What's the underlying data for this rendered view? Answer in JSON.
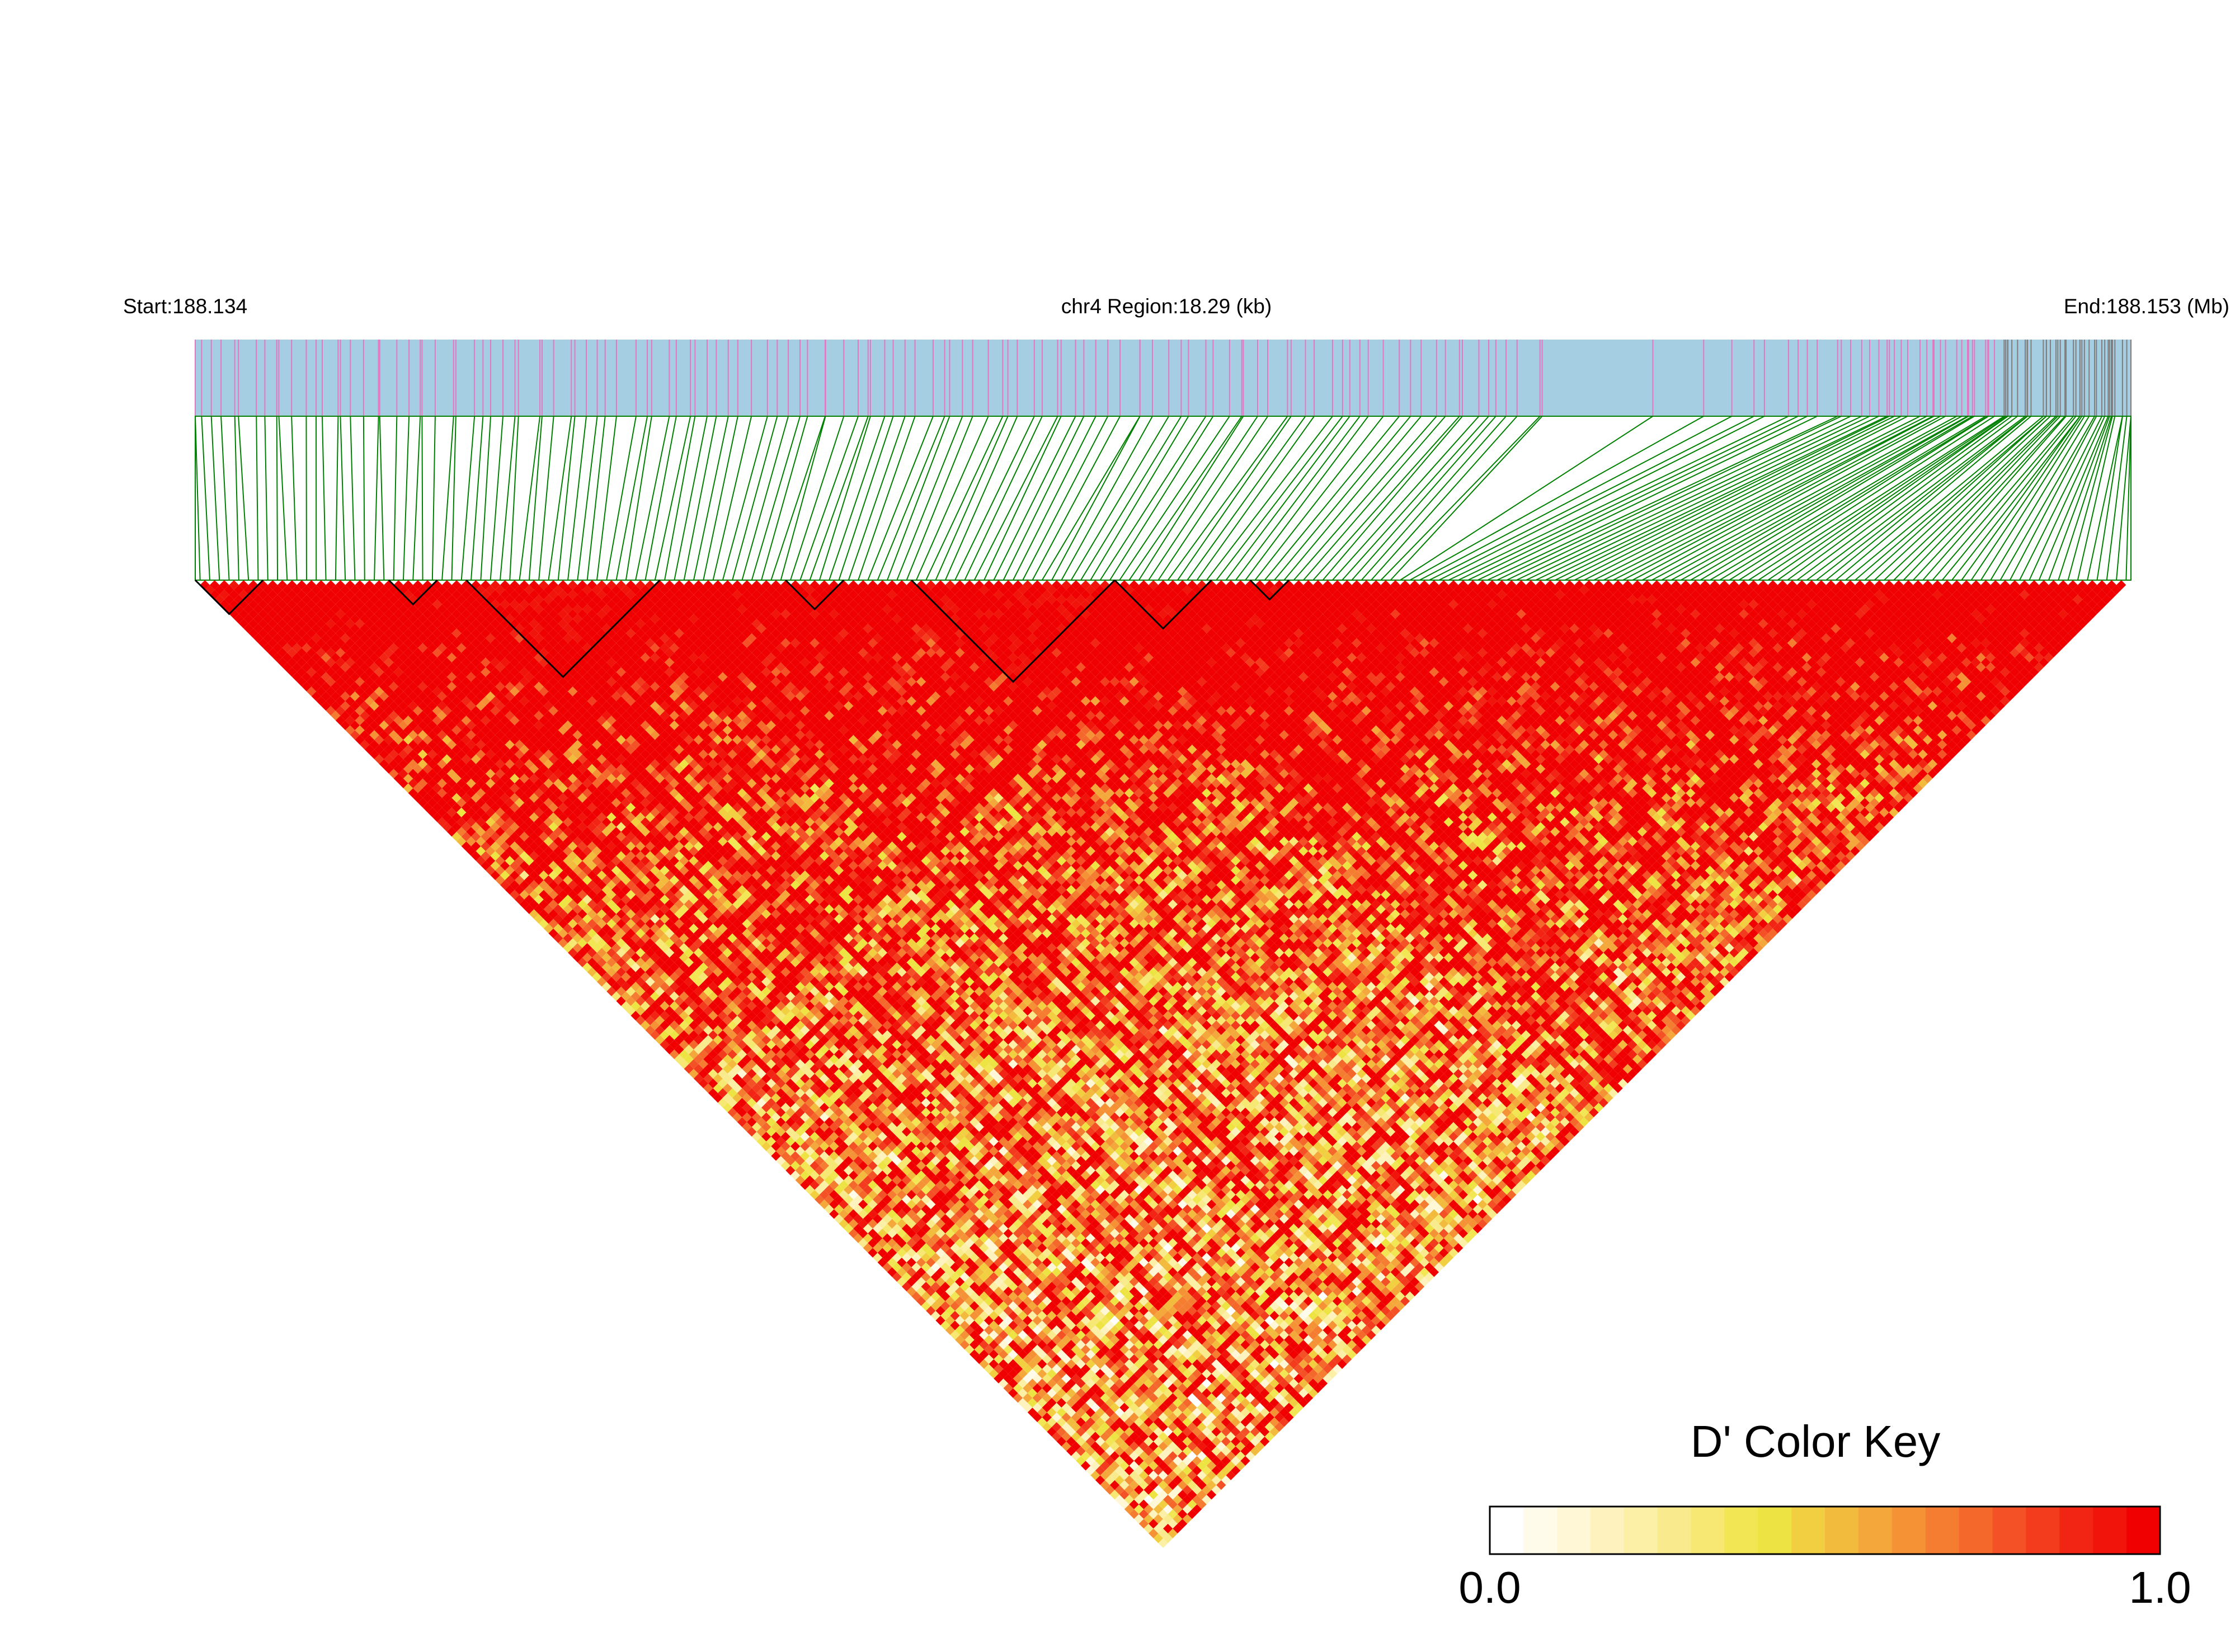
{
  "chart_data": {
    "type": "heatmap",
    "subtype": "linkage-disequilibrium-triangle",
    "measure": "D'",
    "header": {
      "start_label": "Start:188.134",
      "region_label": "chr4 Region:18.29 (kb)",
      "end_label": "End:188.153 (Mb)"
    },
    "chromosome": "chr4",
    "region_start_mb": 188.134,
    "region_end_mb": 188.153,
    "region_length_kb": 18.29,
    "snp_count_estimate": 200,
    "color_key": {
      "title": "D' Color Key",
      "min_label": "0.0",
      "max_label": "1.0",
      "range": [
        0,
        1
      ],
      "steps": 20,
      "colors": [
        "#FFFFFF",
        "#FFFBEA",
        "#FFF7D5",
        "#FEF3BF",
        "#FCEFA6",
        "#F9EB8D",
        "#F6E872",
        "#F3E654",
        "#EDE443",
        "#F2CF40",
        "#F3BB3D",
        "#F4A73A",
        "#F59236",
        "#F57D31",
        "#F5682C",
        "#F45126",
        "#F33B1E",
        "#F22515",
        "#F1140B",
        "#F00000"
      ]
    },
    "colors": {
      "gene_track": "#A6CEE3",
      "snp_tick_pink": "#E377C2",
      "snp_tick_gray": "#7F7F7F",
      "connector_lines": "#008000",
      "block_outline": "#000000"
    },
    "haplotype_blocks": [
      {
        "snp_start": 0,
        "snp_end": 6
      },
      {
        "snp_start": 20,
        "snp_end": 24
      },
      {
        "snp_start": 28,
        "snp_end": 47
      },
      {
        "snp_start": 61,
        "snp_end": 66
      },
      {
        "snp_start": 74,
        "snp_end": 94
      },
      {
        "snp_start": 95,
        "snp_end": 104
      },
      {
        "snp_start": 109,
        "snp_end": 112
      }
    ]
  }
}
